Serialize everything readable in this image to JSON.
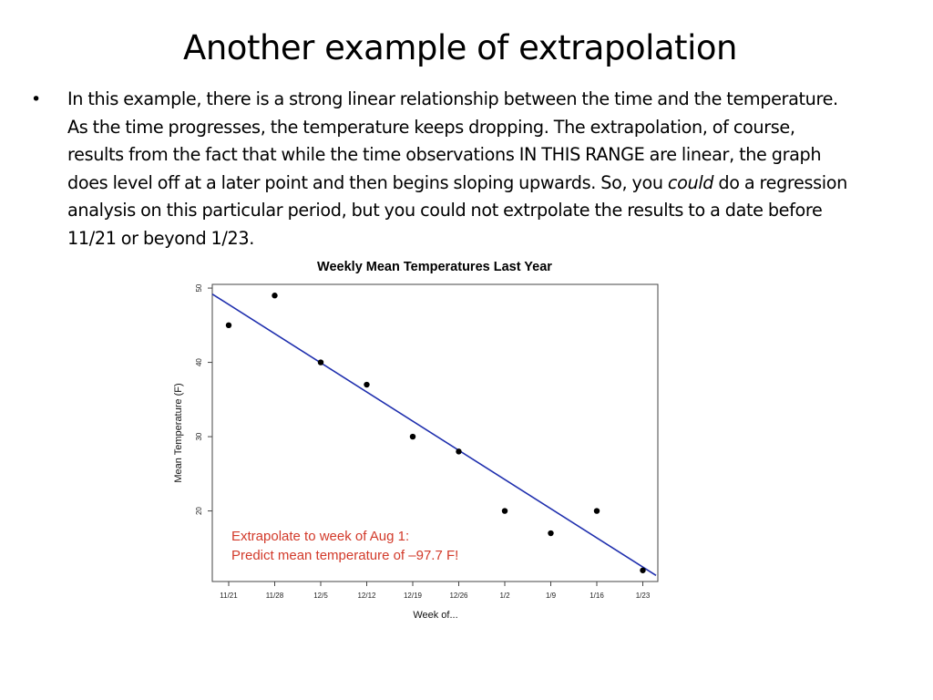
{
  "slide": {
    "title": "Another example of extrapolation",
    "bullet_symbol": "•",
    "bullet_text_before": "In this example, there is a strong linear relationship between the time and the temperature. As the time progresses, the temperature keeps dropping. The extrapolation, of course, results from the fact that while the time observations IN THIS RANGE are linear, the graph does level off at a later point and then begins sloping upwards.  So, you ",
    "bullet_text_emph": "could",
    "bullet_text_after": " do a regression analysis on this particular period, but you could not extrpolate the results to a date before 11/21 or beyond 1/23."
  },
  "chart_data": {
    "type": "scatter",
    "title": "Weekly Mean Temperatures Last Year",
    "xlabel": "Week of...",
    "ylabel": "Mean Temperature (F)",
    "categories": [
      "11/21",
      "11/28",
      "12/5",
      "12/12",
      "12/19",
      "12/26",
      "1/2",
      "1/9",
      "1/16",
      "1/23"
    ],
    "series": [
      {
        "values": [
          45,
          49,
          40,
          37,
          30,
          28,
          20,
          17,
          20,
          12
        ]
      }
    ],
    "regression_line": {
      "y_at_first": 47.8,
      "y_at_last": 12.6
    },
    "yticks": [
      20,
      30,
      40,
      50
    ],
    "ylim": [
      10.5,
      50.5
    ],
    "annotation_lines": [
      "Extrapolate to week of Aug 1:",
      "Predict mean temperature of –97.7 F!"
    ],
    "colors": {
      "points": "#000000",
      "line": "#1f2fae",
      "annotation": "#d23a2a",
      "frame": "#444444"
    }
  }
}
